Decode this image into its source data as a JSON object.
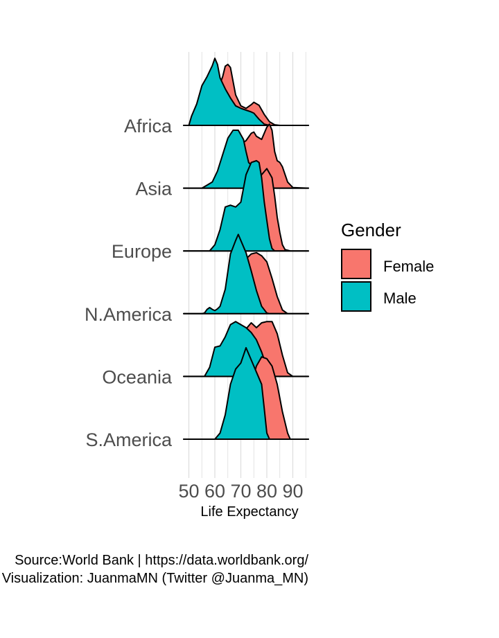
{
  "chart_data": {
    "type": "ridgeline",
    "xlabel": "Life Expectancy",
    "x_ticks": [
      50,
      60,
      70,
      80,
      90
    ],
    "xlim": [
      48,
      96
    ],
    "categories": [
      "Africa",
      "Asia",
      "Europe",
      "N.America",
      "Oceania",
      "S.America"
    ],
    "legend": {
      "title": "Gender",
      "position": "right",
      "entries": [
        {
          "name": "Female",
          "color": "#F8766D"
        },
        {
          "name": "Male",
          "color": "#00BFC4"
        }
      ]
    },
    "grid": true,
    "caption": [
      "Source:World Bank  | https://data.worldbank.org/",
      "Visualization: JuanmaMN (Twitter @Juanma_MN)"
    ],
    "series": [
      {
        "name": "Female",
        "color": "#F8766D",
        "densities": {
          "Africa": [
            [
              48,
              0
            ],
            [
              52,
              0
            ],
            [
              55,
              0.05
            ],
            [
              58,
              0.25
            ],
            [
              60,
              0.5
            ],
            [
              62,
              0.68
            ],
            [
              63,
              0.8
            ],
            [
              64,
              0.97
            ],
            [
              65,
              1.0
            ],
            [
              66,
              0.95
            ],
            [
              67,
              0.72
            ],
            [
              68,
              0.5
            ],
            [
              70,
              0.32
            ],
            [
              72,
              0.28
            ],
            [
              74,
              0.34
            ],
            [
              75,
              0.38
            ],
            [
              77,
              0.33
            ],
            [
              79,
              0.18
            ],
            [
              81,
              0.06
            ],
            [
              83,
              0.01
            ],
            [
              85,
              0
            ],
            [
              96,
              0
            ]
          ],
          "Asia": [
            [
              48,
              0
            ],
            [
              57,
              0
            ],
            [
              59,
              0.03
            ],
            [
              62,
              0.25
            ],
            [
              64,
              0.55
            ],
            [
              67,
              0.68
            ],
            [
              70,
              0.72
            ],
            [
              72,
              0.78
            ],
            [
              74,
              0.9
            ],
            [
              75,
              0.92
            ],
            [
              76,
              0.85
            ],
            [
              78,
              0.8
            ],
            [
              80,
              1.0
            ],
            [
              81,
              1.05
            ],
            [
              82,
              0.95
            ],
            [
              83,
              0.6
            ],
            [
              84,
              0.45
            ],
            [
              85,
              0.42
            ],
            [
              86,
              0.35
            ],
            [
              88,
              0.1
            ],
            [
              90,
              0.01
            ],
            [
              96,
              0
            ]
          ],
          "Europe": [
            [
              48,
              0
            ],
            [
              62,
              0
            ],
            [
              64,
              0.1
            ],
            [
              66,
              0.3
            ],
            [
              68,
              0.55
            ],
            [
              70,
              0.72
            ],
            [
              72,
              0.75
            ],
            [
              74,
              0.8
            ],
            [
              76,
              1.05
            ],
            [
              78,
              1.25
            ],
            [
              80,
              1.35
            ],
            [
              82,
              1.2
            ],
            [
              83,
              0.9
            ],
            [
              84,
              0.55
            ],
            [
              85,
              0.3
            ],
            [
              86,
              0.1
            ],
            [
              87,
              0.02
            ],
            [
              89,
              0
            ],
            [
              96,
              0
            ]
          ],
          "N.America": [
            [
              48,
              0
            ],
            [
              60,
              0
            ],
            [
              62,
              0.03
            ],
            [
              64,
              0.08
            ],
            [
              66,
              0.05
            ],
            [
              68,
              0.18
            ],
            [
              70,
              0.6
            ],
            [
              72,
              0.9
            ],
            [
              74,
              0.98
            ],
            [
              76,
              1.0
            ],
            [
              78,
              0.95
            ],
            [
              80,
              0.85
            ],
            [
              82,
              0.58
            ],
            [
              84,
              0.28
            ],
            [
              86,
              0.06
            ],
            [
              88,
              0
            ],
            [
              96,
              0
            ]
          ],
          "Oceania": [
            [
              48,
              0
            ],
            [
              60,
              0
            ],
            [
              63,
              0.1
            ],
            [
              66,
              0.42
            ],
            [
              68,
              0.65
            ],
            [
              70,
              0.58
            ],
            [
              72,
              0.78
            ],
            [
              74,
              0.88
            ],
            [
              76,
              0.8
            ],
            [
              78,
              0.88
            ],
            [
              80,
              0.9
            ],
            [
              82,
              0.9
            ],
            [
              84,
              0.7
            ],
            [
              86,
              0.35
            ],
            [
              88,
              0.06
            ],
            [
              90,
              0
            ],
            [
              96,
              0
            ]
          ],
          "S.America": [
            [
              48,
              0
            ],
            [
              66,
              0
            ],
            [
              68,
              0.08
            ],
            [
              70,
              0.25
            ],
            [
              72,
              0.55
            ],
            [
              74,
              0.9
            ],
            [
              76,
              1.2
            ],
            [
              78,
              1.35
            ],
            [
              80,
              1.32
            ],
            [
              82,
              1.2
            ],
            [
              84,
              0.9
            ],
            [
              86,
              0.45
            ],
            [
              88,
              0.1
            ],
            [
              89,
              0
            ],
            [
              96,
              0
            ]
          ]
        }
      },
      {
        "name": "Male",
        "color": "#00BFC4",
        "densities": {
          "Africa": [
            [
              48,
              0
            ],
            [
              50,
              0
            ],
            [
              51,
              0.15
            ],
            [
              53,
              0.35
            ],
            [
              55,
              0.65
            ],
            [
              57,
              0.8
            ],
            [
              59,
              0.98
            ],
            [
              60,
              1.1
            ],
            [
              61,
              1.0
            ],
            [
              62,
              0.78
            ],
            [
              64,
              0.6
            ],
            [
              66,
              0.45
            ],
            [
              68,
              0.32
            ],
            [
              70,
              0.28
            ],
            [
              72,
              0.25
            ],
            [
              74,
              0.22
            ],
            [
              75,
              0.2
            ],
            [
              77,
              0.1
            ],
            [
              79,
              0.02
            ],
            [
              81,
              0
            ],
            [
              96,
              0
            ]
          ],
          "Asia": [
            [
              48,
              0
            ],
            [
              55,
              0
            ],
            [
              57,
              0.05
            ],
            [
              59,
              0.1
            ],
            [
              61,
              0.28
            ],
            [
              63,
              0.55
            ],
            [
              65,
              0.82
            ],
            [
              67,
              0.95
            ],
            [
              69,
              0.95
            ],
            [
              71,
              0.8
            ],
            [
              72,
              0.6
            ],
            [
              73,
              0.42
            ],
            [
              74,
              0.38
            ],
            [
              75,
              0.3
            ],
            [
              76,
              0.1
            ],
            [
              77,
              0
            ],
            [
              96,
              0
            ]
          ],
          "Europe": [
            [
              48,
              0
            ],
            [
              58,
              0
            ],
            [
              60,
              0.1
            ],
            [
              62,
              0.35
            ],
            [
              64,
              0.72
            ],
            [
              66,
              0.75
            ],
            [
              68,
              0.72
            ],
            [
              70,
              0.8
            ],
            [
              72,
              1.25
            ],
            [
              74,
              1.45
            ],
            [
              76,
              1.48
            ],
            [
              77,
              1.45
            ],
            [
              78,
              1.2
            ],
            [
              79,
              0.8
            ],
            [
              80,
              0.5
            ],
            [
              81,
              0.2
            ],
            [
              82,
              0.04
            ],
            [
              83,
              0
            ],
            [
              96,
              0
            ]
          ],
          "N.America": [
            [
              48,
              0
            ],
            [
              55,
              0
            ],
            [
              56,
              0.01
            ],
            [
              57,
              0.07
            ],
            [
              58,
              0.1
            ],
            [
              59,
              0.07
            ],
            [
              60,
              0.05
            ],
            [
              61,
              0.08
            ],
            [
              62,
              0.12
            ],
            [
              64,
              0.4
            ],
            [
              66,
              0.98
            ],
            [
              68,
              1.2
            ],
            [
              69,
              1.3
            ],
            [
              70,
              1.2
            ],
            [
              72,
              1.0
            ],
            [
              74,
              0.7
            ],
            [
              76,
              0.38
            ],
            [
              78,
              0.12
            ],
            [
              80,
              0.01
            ],
            [
              81,
              0
            ],
            [
              96,
              0
            ]
          ],
          "Oceania": [
            [
              48,
              0
            ],
            [
              56,
              0
            ],
            [
              58,
              0.15
            ],
            [
              60,
              0.48
            ],
            [
              62,
              0.5
            ],
            [
              64,
              0.65
            ],
            [
              66,
              0.85
            ],
            [
              68,
              0.9
            ],
            [
              70,
              0.85
            ],
            [
              72,
              0.8
            ],
            [
              74,
              0.72
            ],
            [
              76,
              0.6
            ],
            [
              78,
              0.4
            ],
            [
              80,
              0.15
            ],
            [
              81,
              0
            ],
            [
              96,
              0
            ]
          ],
          "S.America": [
            [
              48,
              0
            ],
            [
              60,
              0
            ],
            [
              62,
              0.1
            ],
            [
              64,
              0.4
            ],
            [
              66,
              0.9
            ],
            [
              68,
              1.15
            ],
            [
              70,
              1.25
            ],
            [
              72,
              1.5
            ],
            [
              74,
              1.3
            ],
            [
              76,
              1.1
            ],
            [
              78,
              0.9
            ],
            [
              79,
              0.5
            ],
            [
              80,
              0.1
            ],
            [
              81,
              0
            ],
            [
              96,
              0
            ]
          ]
        }
      }
    ]
  }
}
